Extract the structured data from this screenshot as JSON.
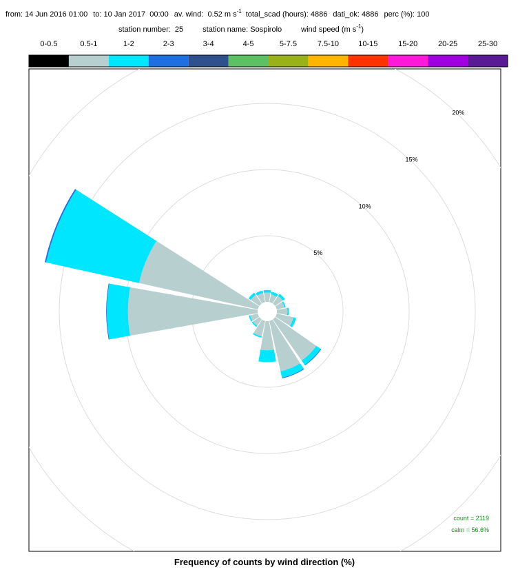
{
  "header": {
    "period_from": "from: 14 Jun 2016 01:00",
    "period_to": "to: 10 Jan 2017  00:00",
    "av_wind": "av. wind:  0.52 m s",
    "av_wind_exp": "-1",
    "total": "total_scad (hours): 4886",
    "dati": "dati_ok: 4886",
    "perc": "perc (%): 100",
    "station_number": "station number:  25",
    "station_name": "station name: Sospirolo",
    "speed_label": "wind speed (m s",
    "speed_exp": "-1",
    "speed_close": ")"
  },
  "chart_data": {
    "type": "windrose",
    "title": "Frequency of counts by wind direction (%)",
    "directions": [
      0,
      22.5,
      45,
      67.5,
      90,
      112.5,
      135,
      157.5,
      180,
      202.5,
      225,
      247.5,
      270,
      292.5,
      315,
      337.5
    ],
    "series": [
      {
        "name": "0-0.5",
        "color": "#000000",
        "values": [
          0,
          0,
          0,
          0,
          0,
          0,
          0,
          0,
          0,
          0,
          0,
          0,
          0,
          0,
          0,
          0
        ]
      },
      {
        "name": "0.5-1",
        "color": "#b8cfd0",
        "values": [
          0.7,
          0.6,
          0.7,
          0.6,
          0.8,
          1.3,
          3.8,
          3.9,
          2.2,
          1.2,
          0.6,
          0.6,
          9.8,
          9.2,
          0.8,
          0.7
        ]
      },
      {
        "name": "1-2",
        "color": "#00e6ff",
        "values": [
          0.2,
          0.2,
          0.2,
          0.1,
          0.1,
          0.2,
          0.4,
          0.5,
          0.9,
          0.1,
          0.1,
          0.1,
          1.6,
          7.2,
          0.2,
          0.2
        ]
      },
      {
        "name": "2-3",
        "color": "#1f6fe0",
        "values": [
          0,
          0,
          0,
          0,
          0,
          0,
          0.05,
          0.05,
          0,
          0,
          0,
          0,
          0.05,
          0.1,
          0,
          0
        ]
      },
      {
        "name": "3-4",
        "color": "#2e508c",
        "values": [
          0,
          0,
          0,
          0,
          0,
          0,
          0,
          0,
          0,
          0,
          0,
          0,
          0,
          0,
          0,
          0
        ]
      },
      {
        "name": "4-5",
        "color": "#5dc062",
        "values": [
          0,
          0,
          0,
          0,
          0,
          0,
          0,
          0,
          0,
          0,
          0,
          0,
          0,
          0,
          0,
          0
        ]
      },
      {
        "name": "5-7.5",
        "color": "#9ab21a",
        "values": [
          0,
          0,
          0,
          0,
          0,
          0,
          0,
          0,
          0,
          0,
          0,
          0,
          0,
          0,
          0,
          0
        ]
      },
      {
        "name": "7.5-10",
        "color": "#ffb400",
        "values": [
          0,
          0,
          0,
          0,
          0,
          0,
          0,
          0,
          0,
          0,
          0,
          0,
          0,
          0,
          0,
          0
        ]
      },
      {
        "name": "10-15",
        "color": "#ff3300",
        "values": [
          0,
          0,
          0,
          0,
          0,
          0,
          0,
          0,
          0,
          0,
          0,
          0,
          0,
          0,
          0,
          0
        ]
      },
      {
        "name": "15-20",
        "color": "#ff1ad9",
        "values": [
          0,
          0,
          0,
          0,
          0,
          0,
          0,
          0,
          0,
          0,
          0,
          0,
          0,
          0,
          0,
          0
        ]
      },
      {
        "name": "20-25",
        "color": "#a000e0",
        "values": [
          0,
          0,
          0,
          0,
          0,
          0,
          0,
          0,
          0,
          0,
          0,
          0,
          0,
          0,
          0,
          0
        ]
      },
      {
        "name": "25-30",
        "color": "#5a1a96",
        "values": [
          0,
          0,
          0,
          0,
          0,
          0,
          0,
          0,
          0,
          0,
          0,
          0,
          0,
          0,
          0,
          0
        ]
      }
    ],
    "rticks": [
      {
        "value": 5,
        "label": "5%"
      },
      {
        "value": 10,
        "label": "10%"
      },
      {
        "value": 15,
        "label": "15%"
      },
      {
        "value": 20,
        "label": "20%"
      }
    ],
    "grid": true,
    "annotations": [
      "count = 2119",
      "calm = 56.6%"
    ],
    "annotation_color": "#1a8a1a"
  }
}
